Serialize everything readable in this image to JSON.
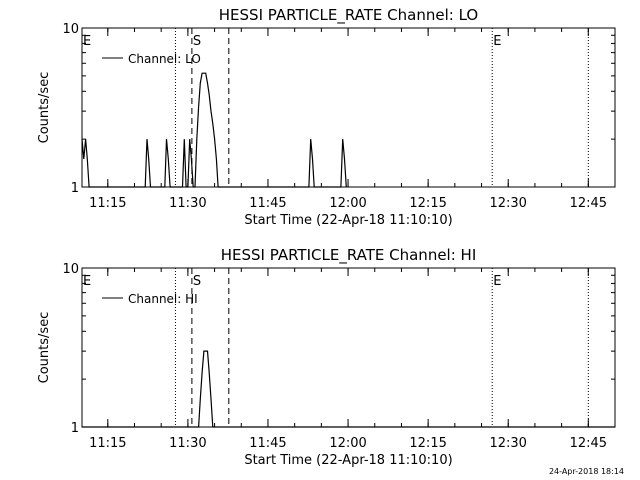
{
  "footer": {
    "timestamp": "24-Apr-2018 18:14"
  },
  "chart_data": [
    {
      "type": "line",
      "title": "HESSI PARTICLE_RATE Channel: LO",
      "xlabel": "Start Time (22-Apr-18 11:10:10)",
      "ylabel": "Counts/sec",
      "yscale": "log",
      "ylim": [
        1,
        10
      ],
      "y_ticks": [
        "1",
        "10"
      ],
      "xlim": [
        "11:10:10",
        "12:50:00"
      ],
      "x_ticks": [
        "11:15",
        "11:30",
        "11:45",
        "12:00",
        "12:15",
        "12:30",
        "12:45"
      ],
      "legend": {
        "label": "Channel: LO",
        "placement": "top-left"
      },
      "markers": [
        {
          "label": "E",
          "time": "11:10:10",
          "style": "none"
        },
        {
          "label": "",
          "time": "11:27:40",
          "style": "dotted"
        },
        {
          "label": "S",
          "time": "11:30:45",
          "style": "dashed"
        },
        {
          "label": "",
          "time": "11:37:40",
          "style": "dashed"
        },
        {
          "label": "E",
          "time": "12:27:00",
          "style": "dotted"
        },
        {
          "label": "",
          "time": "12:45:00",
          "style": "dotted"
        }
      ],
      "series": [
        {
          "name": "Channel: LO",
          "x": [
            "11:10:10",
            "11:10:30",
            "11:10:50",
            "11:11:10",
            "11:11:30",
            "11:12:00",
            "11:22:00",
            "11:22:20",
            "11:22:40",
            "11:23:00",
            "11:25:40",
            "11:26:00",
            "11:26:20",
            "11:26:40",
            "11:29:00",
            "11:29:20",
            "11:29:40",
            "11:30:00",
            "11:30:20",
            "11:30:40",
            "11:31:00",
            "11:31:20",
            "11:31:40",
            "11:32:00",
            "11:32:20",
            "11:32:40",
            "11:33:00",
            "11:33:20",
            "11:33:40",
            "11:34:00",
            "11:34:20",
            "11:34:40",
            "11:35:00",
            "11:35:20",
            "11:35:40",
            "11:36:00",
            "11:52:40",
            "11:53:00",
            "11:53:20",
            "11:53:40",
            "11:58:40",
            "11:59:00",
            "11:59:20",
            "11:59:40"
          ],
          "y": [
            2,
            1.5,
            2,
            1.5,
            1,
            1,
            1,
            2,
            1.5,
            1,
            1,
            2,
            1.5,
            1,
            1,
            2,
            1,
            1,
            2,
            1.5,
            1,
            1,
            2,
            3.2,
            4.5,
            5.2,
            5.2,
            5.2,
            4.5,
            3.8,
            3,
            2.5,
            2,
            1.5,
            1,
            1,
            1,
            2,
            1.5,
            1,
            1,
            2,
            1.5,
            1
          ]
        }
      ]
    },
    {
      "type": "line",
      "title": "HESSI PARTICLE_RATE Channel: HI",
      "xlabel": "Start Time (22-Apr-18 11:10:10)",
      "ylabel": "Counts/sec",
      "yscale": "log",
      "ylim": [
        1,
        10
      ],
      "y_ticks": [
        "1",
        "10"
      ],
      "xlim": [
        "11:10:10",
        "12:50:00"
      ],
      "x_ticks": [
        "11:15",
        "11:30",
        "11:45",
        "12:00",
        "12:15",
        "12:30",
        "12:45"
      ],
      "legend": {
        "label": "Channel: HI",
        "placement": "top-left"
      },
      "markers": [
        {
          "label": "E",
          "time": "11:10:10",
          "style": "none"
        },
        {
          "label": "",
          "time": "11:27:40",
          "style": "dotted"
        },
        {
          "label": "S",
          "time": "11:30:45",
          "style": "dashed"
        },
        {
          "label": "",
          "time": "11:37:40",
          "style": "dashed"
        },
        {
          "label": "E",
          "time": "12:27:00",
          "style": "dotted"
        },
        {
          "label": "",
          "time": "12:45:00",
          "style": "dotted"
        }
      ],
      "series": [
        {
          "name": "Channel: HI",
          "x": [
            "11:10:10",
            "11:32:00",
            "11:32:20",
            "11:32:40",
            "11:33:00",
            "11:33:20",
            "11:33:40",
            "11:34:00",
            "11:34:20",
            "11:34:40",
            "11:35:00",
            "12:50:00"
          ],
          "y": [
            1,
            1,
            1.5,
            2.2,
            3,
            3,
            3,
            2.2,
            1.5,
            1,
            1,
            1
          ]
        }
      ]
    }
  ]
}
